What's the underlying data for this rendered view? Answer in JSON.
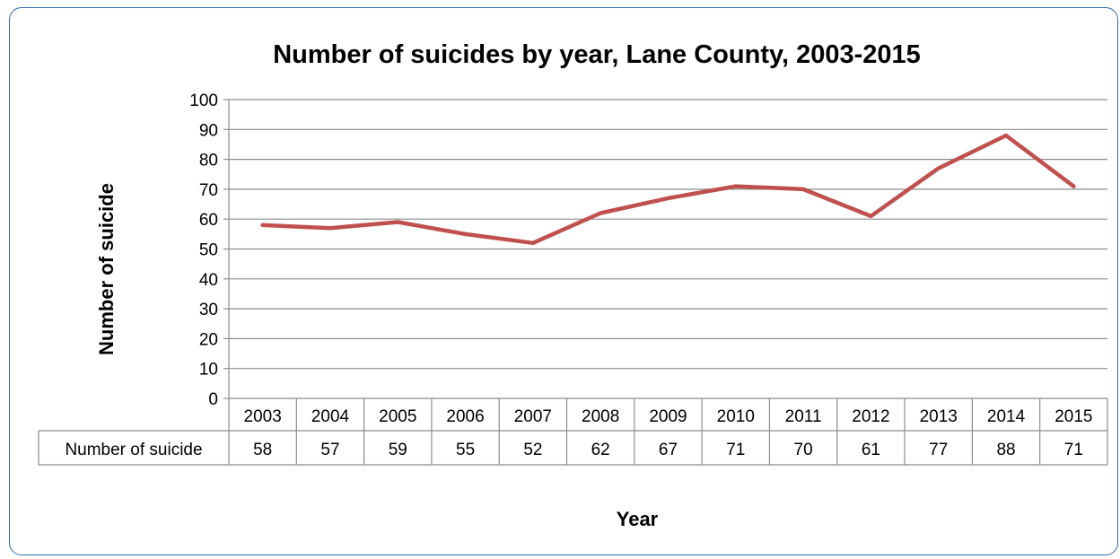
{
  "chart_data": {
    "type": "line",
    "title": "Number of suicides by year, Lane County, 2003-2015",
    "xlabel": "Year",
    "ylabel": "Number of suicide",
    "categories": [
      "2003",
      "2004",
      "2005",
      "2006",
      "2007",
      "2008",
      "2009",
      "2010",
      "2011",
      "2012",
      "2013",
      "2014",
      "2015"
    ],
    "series": [
      {
        "name": "Number of suicide",
        "values": [
          58,
          57,
          59,
          55,
          52,
          62,
          67,
          71,
          70,
          61,
          77,
          88,
          71
        ],
        "color": "#c0504d"
      }
    ],
    "ylim": [
      0,
      100
    ],
    "yticks": [
      0,
      10,
      20,
      30,
      40,
      50,
      60,
      70,
      80,
      90,
      100
    ],
    "grid": true,
    "legend": "data-table",
    "data_table": true
  }
}
